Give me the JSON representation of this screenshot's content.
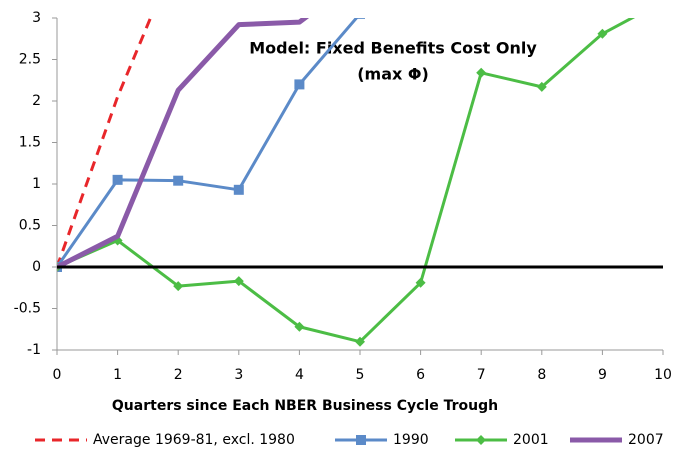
{
  "chart_data": {
    "type": "line",
    "annotation": [
      "Model: Fixed Benefits Cost Only",
      "(max Φ)"
    ],
    "x_label": "Quarters since Each NBER Business Cycle Trough",
    "x": [
      0,
      1,
      2,
      3,
      4,
      5,
      6,
      7,
      8,
      9,
      10
    ],
    "xlim": [
      0,
      10
    ],
    "xticks": [
      0,
      1,
      2,
      3,
      4,
      5,
      6,
      7,
      8,
      9,
      10
    ],
    "ylim": [
      -1,
      3
    ],
    "yticks": [
      -1,
      -0.5,
      0,
      0.5,
      1,
      1.5,
      2,
      2.5,
      3
    ],
    "grid": false,
    "legend": "bottom",
    "series": [
      {
        "name": "Average 1969-81, excl. 1980",
        "color": "#e8262a",
        "dash": true,
        "marker": "none",
        "width": 3,
        "values": [
          0,
          2.05,
          3.8,
          null,
          null,
          null,
          null,
          null,
          null,
          null,
          null
        ]
      },
      {
        "name": "1990",
        "color": "#5b8ac8",
        "dash": false,
        "marker": "square",
        "width": 3,
        "values": [
          0,
          1.05,
          1.04,
          0.93,
          2.2,
          3.05,
          null,
          null,
          null,
          null,
          null
        ]
      },
      {
        "name": "2001",
        "color": "#4cbd45",
        "dash": false,
        "marker": "diamond",
        "width": 3,
        "values": [
          0,
          0.32,
          -0.23,
          -0.17,
          -0.72,
          -0.9,
          -0.19,
          2.34,
          2.17,
          2.81,
          3.2
        ]
      },
      {
        "name": "2007",
        "color": "#8a5aa8",
        "dash": false,
        "marker": "none",
        "width": 5,
        "values": [
          0,
          0.37,
          2.13,
          2.92,
          2.95,
          3.5,
          null,
          null,
          null,
          null,
          null
        ]
      }
    ]
  }
}
